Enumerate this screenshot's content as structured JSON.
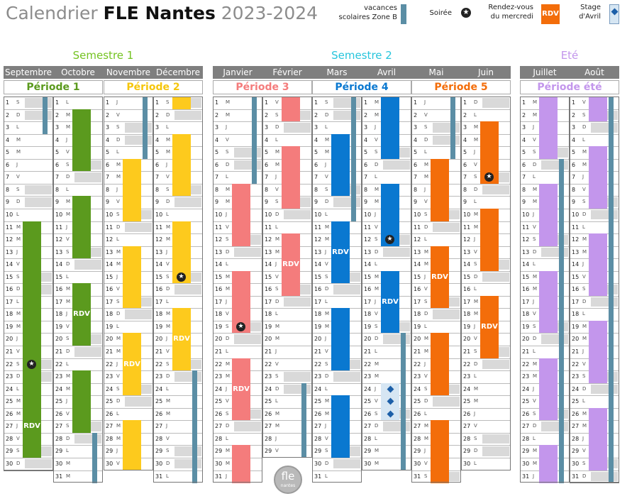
{
  "title": {
    "part1": "Calendrier",
    "part2": "FLE Nantes",
    "part3": "2023-2024"
  },
  "legend": {
    "vacances": "vacances\nscolaires Zone B",
    "soiree": "Soirée",
    "rdv_label": "Rendez-vous\ndu mercredi",
    "rdv_box": "RDV",
    "stage": "Stage\nd'Avril"
  },
  "colors": {
    "vacances": "#5b8ea5",
    "weekend": "#d9d9d9",
    "rdv": "#f36d0a",
    "stage": "#d6e6f3",
    "p1": "#5b9a1e",
    "p2": "#fdca1d",
    "p3": "#f47c7c",
    "p4": "#0a78d0",
    "p5": "#f36d0a",
    "pete": "#c396ec"
  },
  "semesters": [
    {
      "label": "Semestre 1",
      "color": "#74c321"
    },
    {
      "label": "Semestre 2",
      "color": "#27c5dc"
    },
    {
      "label": "Eté",
      "color": "#c396ec"
    }
  ],
  "periods": [
    {
      "label": "Période 1",
      "color": "#5b9a1e"
    },
    {
      "label": "Période 2",
      "color": "#f5c60c"
    },
    {
      "label": "Période 3",
      "color": "#f47c7c"
    },
    {
      "label": "Période 4",
      "color": "#0a78d0"
    },
    {
      "label": "Période 5",
      "color": "#f36d0a"
    },
    {
      "label": "Période été",
      "color": "#c396ec"
    }
  ],
  "months": [
    {
      "name": "Septembre",
      "days": 30,
      "start": 5,
      "period": "p1",
      "bars": [
        [
          11,
          29
        ]
      ],
      "vac": [
        [
          1,
          3
        ]
      ],
      "stars": [
        22
      ],
      "rdv": [
        27
      ],
      "stage": []
    },
    {
      "name": "Octobre",
      "days": 31,
      "start": 0,
      "period": "p1",
      "bars": [
        [
          2,
          6
        ],
        [
          9,
          13
        ],
        [
          16,
          20
        ],
        [
          23,
          27
        ]
      ],
      "vac": [
        [
          28,
          31
        ]
      ],
      "stars": [],
      "rdv": [
        18
      ],
      "stage": []
    },
    {
      "name": "Novembre",
      "days": 30,
      "start": 3,
      "period": "p2",
      "bars": [
        [
          6,
          10
        ],
        [
          13,
          17
        ],
        [
          20,
          24
        ],
        [
          27,
          30
        ]
      ],
      "vac": [
        [
          1,
          5
        ]
      ],
      "stars": [],
      "rdv": [
        22
      ],
      "stage": []
    },
    {
      "name": "Décembre",
      "days": 31,
      "start": 5,
      "period": "p2",
      "bars": [
        [
          1,
          1
        ],
        [
          4,
          8
        ],
        [
          11,
          15
        ],
        [
          18,
          22
        ]
      ],
      "vac": [
        [
          23,
          31
        ]
      ],
      "stars": [
        15
      ],
      "rdv": [
        20
      ],
      "stage": []
    },
    {
      "name": "Janvier",
      "days": 31,
      "start": 1,
      "period": "p3",
      "bars": [
        [
          8,
          12
        ],
        [
          15,
          19
        ],
        [
          22,
          26
        ],
        [
          29,
          31
        ]
      ],
      "vac": [
        [
          1,
          7
        ]
      ],
      "stars": [
        19
      ],
      "rdv": [
        24
      ],
      "stage": []
    },
    {
      "name": "Février",
      "days": 29,
      "start": 4,
      "period": "p3",
      "bars": [
        [
          1,
          2
        ],
        [
          5,
          9
        ],
        [
          12,
          16
        ]
      ],
      "vac": [
        [
          24,
          29
        ]
      ],
      "stars": [],
      "rdv": [
        14
      ],
      "stage": []
    },
    {
      "name": "Mars",
      "days": 31,
      "start": 5,
      "period": "p4",
      "bars": [
        [
          4,
          8
        ],
        [
          11,
          15
        ],
        [
          18,
          22
        ],
        [
          25,
          29
        ]
      ],
      "vac": [
        [
          1,
          10
        ]
      ],
      "stars": [],
      "rdv": [
        13
      ],
      "stage": []
    },
    {
      "name": "Avril",
      "days": 30,
      "start": 1,
      "period": "p4",
      "bars": [
        [
          1,
          5
        ],
        [
          8,
          12
        ],
        [
          15,
          19
        ]
      ],
      "vac": [
        [
          20,
          30
        ]
      ],
      "stars": [
        12
      ],
      "rdv": [
        17
      ],
      "stage": [
        24,
        25,
        26
      ]
    },
    {
      "name": "Mai",
      "days": 31,
      "start": 3,
      "period": "p5",
      "bars": [
        [
          6,
          10
        ],
        [
          13,
          17
        ],
        [
          20,
          24
        ],
        [
          27,
          31
        ]
      ],
      "vac": [
        [
          1,
          5
        ]
      ],
      "stars": [],
      "rdv": [
        15
      ],
      "stage": []
    },
    {
      "name": "Juin",
      "days": 30,
      "start": 6,
      "period": "p5",
      "bars": [
        [
          3,
          7
        ],
        [
          10,
          14
        ],
        [
          17,
          21
        ]
      ],
      "vac": [],
      "stars": [
        7
      ],
      "rdv": [
        19
      ],
      "stage": []
    },
    {
      "name": "Juillet",
      "days": 31,
      "start": 1,
      "period": "pete",
      "bars": [
        [
          1,
          5
        ],
        [
          8,
          12
        ],
        [
          15,
          19
        ],
        [
          22,
          26
        ],
        [
          29,
          31
        ]
      ],
      "vac": [
        [
          6,
          31
        ]
      ],
      "stars": [],
      "rdv": [],
      "stage": []
    },
    {
      "name": "Août",
      "days": 31,
      "start": 4,
      "period": "pete",
      "bars": [
        [
          1,
          2
        ],
        [
          5,
          9
        ],
        [
          12,
          16
        ],
        [
          19,
          23
        ],
        [
          26,
          30
        ]
      ],
      "vac": [
        [
          1,
          31
        ]
      ],
      "stars": [],
      "rdv": [],
      "stage": []
    }
  ],
  "weekday_letters": [
    "L",
    "M",
    "M",
    "J",
    "V",
    "S",
    "D"
  ],
  "logo": {
    "main": "fle",
    "sub": "nantes"
  }
}
